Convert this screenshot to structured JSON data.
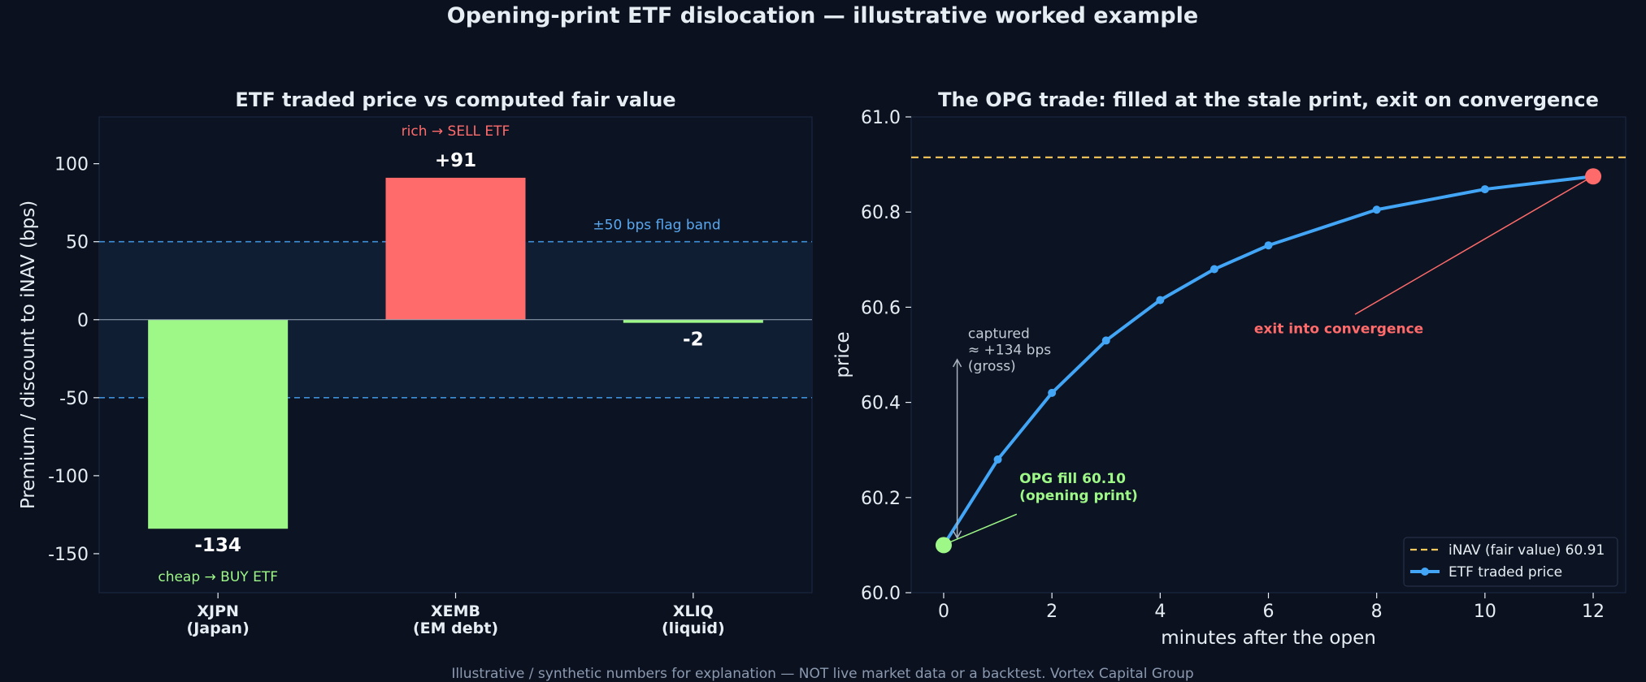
{
  "suptitle": "Opening-print ETF dislocation — illustrative worked example",
  "footer": "Illustrative / synthetic numbers for explanation — NOT live market data or a backtest.  Vortex Capital Group",
  "colors": {
    "background": "#0b111e",
    "panel": "#0c1322",
    "band": "#0f1e33",
    "positive": "#ff6b6b",
    "negative": "#9ef888",
    "line": "#42a5f5",
    "inav": "#f7c85a",
    "bandline": "#3d8fd8"
  },
  "chart_data": [
    {
      "type": "bar",
      "title": "ETF traded price vs computed fair value",
      "ylabel": "Premium / discount to iNAV (bps)",
      "xlabel": "",
      "ylim": [
        -175,
        130
      ],
      "yticks": [
        -150,
        -100,
        -50,
        0,
        50,
        100
      ],
      "categories": [
        "XJPN\n(Japan)",
        "XEMB\n(EM debt)",
        "XLIQ\n(liquid)"
      ],
      "values": [
        -134,
        91,
        -2
      ],
      "value_labels": [
        "-134",
        "+91",
        "-2"
      ],
      "flag_band": 50,
      "band_label": "±50 bps flag band",
      "rich_label": "rich → SELL ETF",
      "cheap_label": "cheap → BUY ETF",
      "grid": false
    },
    {
      "type": "line",
      "title": "The OPG trade: filled at the stale print, exit on convergence",
      "xlabel": "minutes after the open",
      "ylabel": "price",
      "xlim": [
        -0.6,
        12.6
      ],
      "ylim": [
        60.0,
        61.0
      ],
      "xticks": [
        0,
        2,
        4,
        6,
        8,
        10,
        12
      ],
      "yticks": [
        "60.0",
        "60.2",
        "60.4",
        "60.6",
        "60.8",
        "61.0"
      ],
      "series": [
        {
          "name": "ETF traded price",
          "x": [
            0,
            1,
            2,
            3,
            4,
            5,
            6,
            8,
            10,
            12
          ],
          "y": [
            60.1,
            60.28,
            60.42,
            60.53,
            60.615,
            60.68,
            60.73,
            60.805,
            60.848,
            60.875
          ]
        }
      ],
      "inav": {
        "name": "iNAV (fair value) 60.91",
        "value": 60.915
      },
      "annotations": {
        "entry": "OPG fill 60.10\n(opening print)",
        "exit": "exit into convergence",
        "captured": "captured\n≈ +134 bps\n(gross)"
      },
      "legend_position": "lower right",
      "grid": false
    }
  ]
}
